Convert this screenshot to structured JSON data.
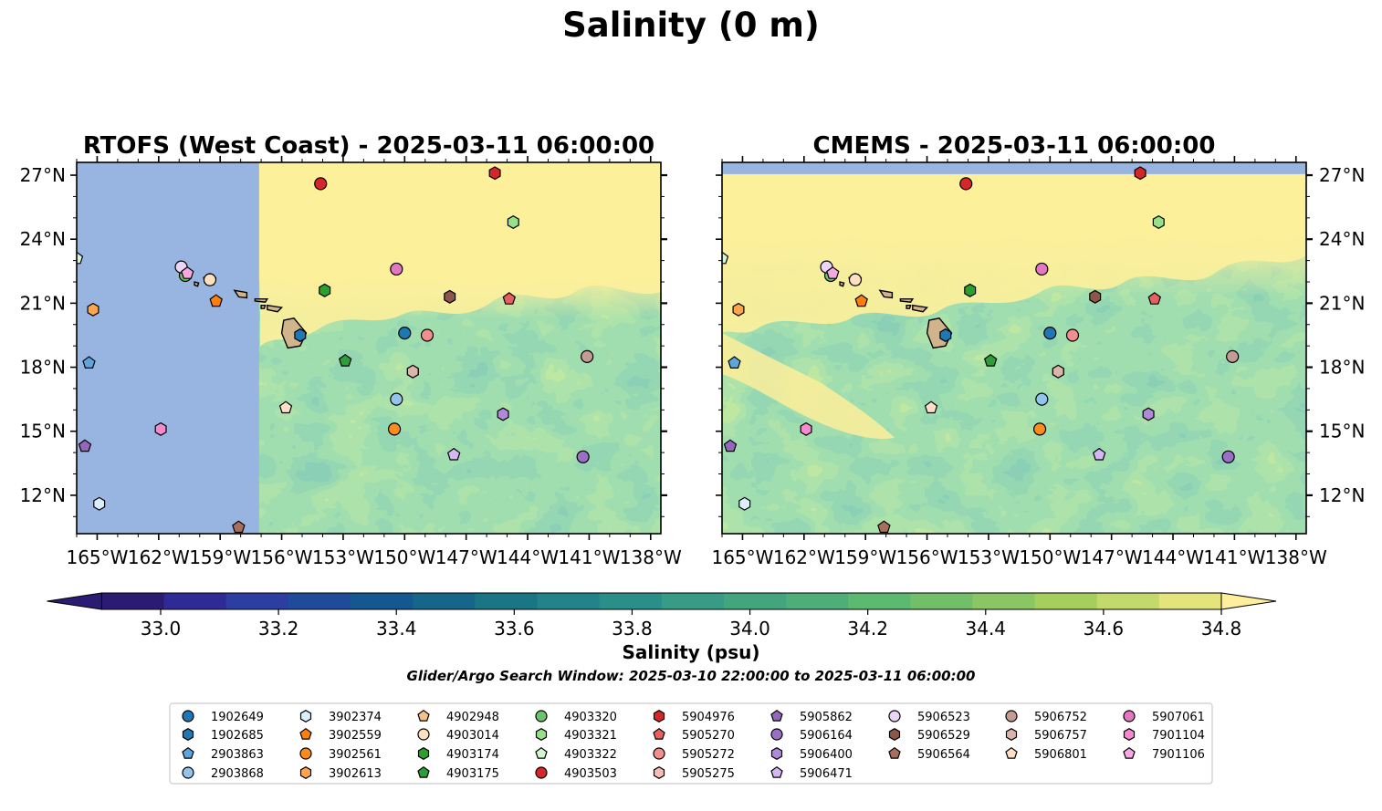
{
  "figure": {
    "suptitle": "Salinity (0 m)",
    "note": "Glider/Argo Search Window: 2025-03-10 22:00:00 to 2025-03-11 06:00:00"
  },
  "chart_data": [
    {
      "type": "heatmap",
      "title": "RTOFS (West Coast) - 2025-03-11 06:00:00",
      "xlim": [
        -166,
        -137.5
      ],
      "ylim": [
        10.2,
        27.6
      ],
      "x_ticks": [
        "165°W",
        "162°W",
        "159°W",
        "156°W",
        "153°W",
        "150°W",
        "147°W",
        "144°W",
        "141°W",
        "138°W"
      ],
      "x_tick_values": [
        -165,
        -162,
        -159,
        -156,
        -153,
        -150,
        -147,
        -144,
        -141,
        -138
      ],
      "y_ticks": [
        "27°N",
        "24°N",
        "21°N",
        "18°N",
        "15°N",
        "12°N"
      ],
      "y_tick_values": [
        27,
        24,
        21,
        18,
        15,
        12
      ],
      "no_data_west_of": -157.1,
      "no_data_color": "#98b4e0"
    },
    {
      "type": "heatmap",
      "title": "CMEMS - 2025-03-11 06:00:00",
      "xlim": [
        -166,
        -137.5
      ],
      "ylim": [
        10.2,
        27.6
      ],
      "x_ticks": [
        "165°W",
        "162°W",
        "159°W",
        "156°W",
        "153°W",
        "150°W",
        "147°W",
        "144°W",
        "141°W",
        "138°W"
      ],
      "x_tick_values": [
        -165,
        -162,
        -159,
        -156,
        -153,
        -150,
        -147,
        -144,
        -141,
        -138
      ],
      "y_ticks": [
        "27°N",
        "24°N",
        "21°N",
        "18°N",
        "15°N",
        "12°N"
      ],
      "y_tick_values": [
        27,
        24,
        21,
        18,
        15,
        12
      ],
      "no_data_north_of": 27.05,
      "no_data_color": "#98b4e0"
    }
  ],
  "colorbar": {
    "label": "Salinity (psu)",
    "vmin": 32.9,
    "vmax": 34.9,
    "ticks": [
      33.0,
      33.2,
      33.4,
      33.6,
      33.8,
      34.0,
      34.2,
      34.4,
      34.6,
      34.8
    ],
    "tick_labels": [
      "33.0",
      "33.2",
      "33.4",
      "33.6",
      "33.8",
      "34.0",
      "34.2",
      "34.4",
      "34.6",
      "34.8"
    ],
    "colors": [
      "#2c1b72",
      "#2f2b94",
      "#2c3ea0",
      "#1f4b9a",
      "#145791",
      "#166689",
      "#1a7585",
      "#22838a",
      "#2a8e89",
      "#389b86",
      "#43a57e",
      "#4fae77",
      "#5cb970",
      "#71c069",
      "#8ac664",
      "#a4cf5c",
      "#c3d96b",
      "#e3e57c"
    ],
    "extend_low": "#2c1b72",
    "extend_high": "#fdef9b"
  },
  "floats": [
    {
      "id": "1902649",
      "lon": -150,
      "lat": 19.6,
      "color": "#1f77b4",
      "marker": "circle"
    },
    {
      "id": "1902685",
      "lon": -155.1,
      "lat": 19.5,
      "color": "#1f77b4",
      "marker": "hexagon"
    },
    {
      "id": "2903863",
      "lon": -165.4,
      "lat": 18.2,
      "color": "#5da5da",
      "marker": "pentagon"
    },
    {
      "id": "2903868",
      "lon": -150.4,
      "lat": 16.5,
      "color": "#93c5ec",
      "marker": "circle"
    },
    {
      "id": "3902374",
      "lon": -164.9,
      "lat": 11.6,
      "color": "#dbeefc",
      "marker": "hexagon"
    },
    {
      "id": "3902559",
      "lon": -159.2,
      "lat": 21.1,
      "color": "#ff7f0e",
      "marker": "pentagon"
    },
    {
      "id": "3902561",
      "lon": -150.5,
      "lat": 15.1,
      "color": "#ff8c1a",
      "marker": "circle"
    },
    {
      "id": "3902613",
      "lon": -165.2,
      "lat": 20.7,
      "color": "#ffa54d",
      "marker": "hexagon"
    },
    {
      "id": "4902948",
      "lon": -159.5,
      "lat": 22.1,
      "color": "#f6c08a",
      "marker": "pentagon"
    },
    {
      "id": "4903014",
      "lon": -159.5,
      "lat": 22.1,
      "color": "#fde0bd",
      "marker": "circle"
    },
    {
      "id": "4903174",
      "lon": -153.9,
      "lat": 21.6,
      "color": "#2ca02c",
      "marker": "hexagon"
    },
    {
      "id": "4903175",
      "lon": -152.9,
      "lat": 18.3,
      "color": "#2f9e3a",
      "marker": "pentagon"
    },
    {
      "id": "4903320",
      "lon": -160.7,
      "lat": 22.3,
      "color": "#6bc46b",
      "marker": "circle"
    },
    {
      "id": "4903321",
      "lon": -144.7,
      "lat": 24.8,
      "color": "#98df8a",
      "marker": "hexagon"
    },
    {
      "id": "4903322",
      "lon": -166,
      "lat": 23.1,
      "color": "#d4f7d1",
      "marker": "pentagon"
    },
    {
      "id": "4903503",
      "lon": -154.1,
      "lat": 26.6,
      "color": "#d62728",
      "marker": "circle"
    },
    {
      "id": "5904976",
      "lon": -145.6,
      "lat": 27.1,
      "color": "#d62728",
      "marker": "hexagon"
    },
    {
      "id": "5905270",
      "lon": -144.9,
      "lat": 21.2,
      "color": "#e5605f",
      "marker": "pentagon"
    },
    {
      "id": "5905272",
      "lon": -148.9,
      "lat": 19.5,
      "color": "#f08f8d",
      "marker": "circle"
    },
    {
      "id": "5905275",
      "lon": -149.6,
      "lat": 17.8,
      "color": "#f6bcb5",
      "marker": "hexagon"
    },
    {
      "id": "5905862",
      "lon": -165.6,
      "lat": 14.3,
      "color": "#9467bd",
      "marker": "pentagon"
    },
    {
      "id": "5906164",
      "lon": -141.3,
      "lat": 13.8,
      "color": "#9b6fc8",
      "marker": "circle"
    },
    {
      "id": "5906400",
      "lon": -145.2,
      "lat": 15.8,
      "color": "#b08ad8",
      "marker": "hexagon"
    },
    {
      "id": "5906471",
      "lon": -147.6,
      "lat": 13.9,
      "color": "#d5b8f2",
      "marker": "pentagon"
    },
    {
      "id": "5906523",
      "lon": -160.9,
      "lat": 22.7,
      "color": "#ebd6f7",
      "marker": "circle"
    },
    {
      "id": "5906529",
      "lon": -147.8,
      "lat": 21.3,
      "color": "#8c564b",
      "marker": "hexagon"
    },
    {
      "id": "5906564",
      "lon": -158.1,
      "lat": 10.5,
      "color": "#a86f5f",
      "marker": "pentagon"
    },
    {
      "id": "5906752",
      "lon": -141.1,
      "lat": 18.5,
      "color": "#c49c94",
      "marker": "circle"
    },
    {
      "id": "5906757",
      "lon": -149.6,
      "lat": 17.8,
      "color": "#dbb5ab",
      "marker": "hexagon"
    },
    {
      "id": "5906801",
      "lon": -155.8,
      "lat": 16.1,
      "color": "#fde0c7",
      "marker": "pentagon"
    },
    {
      "id": "5907061",
      "lon": -150.4,
      "lat": 22.6,
      "color": "#e377c2",
      "marker": "circle"
    },
    {
      "id": "7901104",
      "lon": -161.9,
      "lat": 15.1,
      "color": "#f58ad0",
      "marker": "hexagon"
    },
    {
      "id": "7901106",
      "lon": -160.6,
      "lat": 22.4,
      "color": "#f7a8e0",
      "marker": "pentagon"
    }
  ],
  "legend": {
    "columns": [
      [
        "1902649",
        "1902685",
        "2903863",
        "2903868"
      ],
      [
        "3902374",
        "3902559",
        "3902561",
        "3902613"
      ],
      [
        "4902948",
        "4903014",
        "4903174",
        "4903175"
      ],
      [
        "4903320",
        "4903321",
        "4903322",
        "4903503"
      ],
      [
        "5904976",
        "5905270",
        "5905272",
        "5905275"
      ],
      [
        "5905862",
        "5906164",
        "5906400",
        "5906471"
      ],
      [
        "5906523",
        "5906529",
        "5906564"
      ],
      [
        "5906752",
        "5906757",
        "5906801"
      ],
      [
        "5907061",
        "7901104",
        "7901106"
      ]
    ]
  },
  "map": {
    "land_color": "#d2b48c",
    "ocean_high_color": "#fdef9b"
  }
}
